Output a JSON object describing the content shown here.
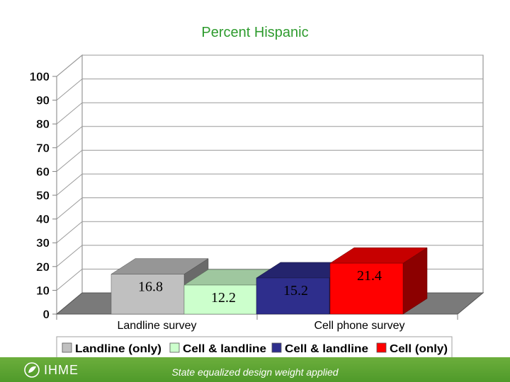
{
  "colors": {
    "title": "#2e9b2e",
    "footer": "#5aa432"
  },
  "chart_data": {
    "type": "bar",
    "title": "Percent Hispanic",
    "ylim": [
      0,
      100
    ],
    "yticks": [
      "0",
      "10",
      "20",
      "30",
      "40",
      "50",
      "60",
      "70",
      "80",
      "90",
      "100"
    ],
    "grid": true,
    "legend_position": "bottom",
    "groups": [
      {
        "label": "Landline survey",
        "values": [
          {
            "series": "Landline (only)",
            "value": 16.8,
            "label": "16.8",
            "color": "#c0c0c0",
            "label_color": "#000000"
          },
          {
            "series": "Cell & landline",
            "value": 12.2,
            "label": "12.2",
            "color": "#ccffcc",
            "label_color": "#000000"
          }
        ]
      },
      {
        "label": "Cell phone survey",
        "values": [
          {
            "series": "Cell & landline",
            "value": 15.2,
            "label": "15.2",
            "color": "#2e2e8c",
            "label_color": "#000000"
          },
          {
            "series": "Cell (only)",
            "value": 21.4,
            "label": "21.4",
            "color": "#ff0000",
            "label_color": "#000000"
          }
        ]
      }
    ],
    "legend": [
      {
        "name": "Landline (only)",
        "color": "#c0c0c0"
      },
      {
        "name": "Cell & landline",
        "color": "#ccffcc"
      },
      {
        "name": "Cell & landline",
        "color": "#2e2e8c"
      },
      {
        "name": "Cell (only)",
        "color": "#ff0000"
      }
    ]
  },
  "footer": {
    "logo_text": "IHME",
    "note": "State equalized design weight applied"
  }
}
